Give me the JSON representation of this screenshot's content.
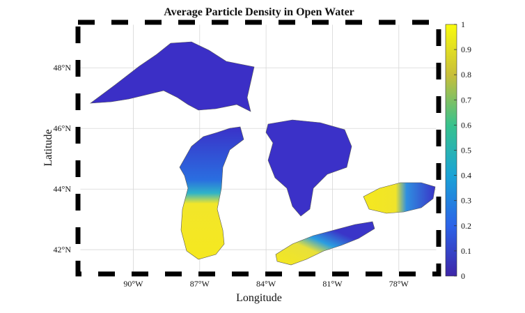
{
  "chart_data": {
    "type": "map",
    "title": "Average Particle Density in Open Water",
    "xlabel": "Longitude",
    "ylabel": "Latitude",
    "xlim": [
      -92.5,
      -76.2
    ],
    "ylim": [
      41.2,
      49.5
    ],
    "xticks": [
      {
        "value": -90,
        "label": "90°W"
      },
      {
        "value": -87,
        "label": "87°W"
      },
      {
        "value": -84,
        "label": "84°W"
      },
      {
        "value": -81,
        "label": "81°W"
      },
      {
        "value": -78,
        "label": "78°W"
      }
    ],
    "yticks": [
      {
        "value": 48,
        "label": "48°N"
      },
      {
        "value": 46,
        "label": "46°N"
      },
      {
        "value": 44,
        "label": "44°N"
      },
      {
        "value": 42,
        "label": "42°N"
      }
    ],
    "grid": true,
    "colorbar": {
      "lim": [
        0,
        1
      ],
      "ticks": [
        0,
        0.1,
        0.2,
        0.3,
        0.4,
        0.5,
        0.6,
        0.7,
        0.8,
        0.9,
        1
      ]
    }
  }
}
